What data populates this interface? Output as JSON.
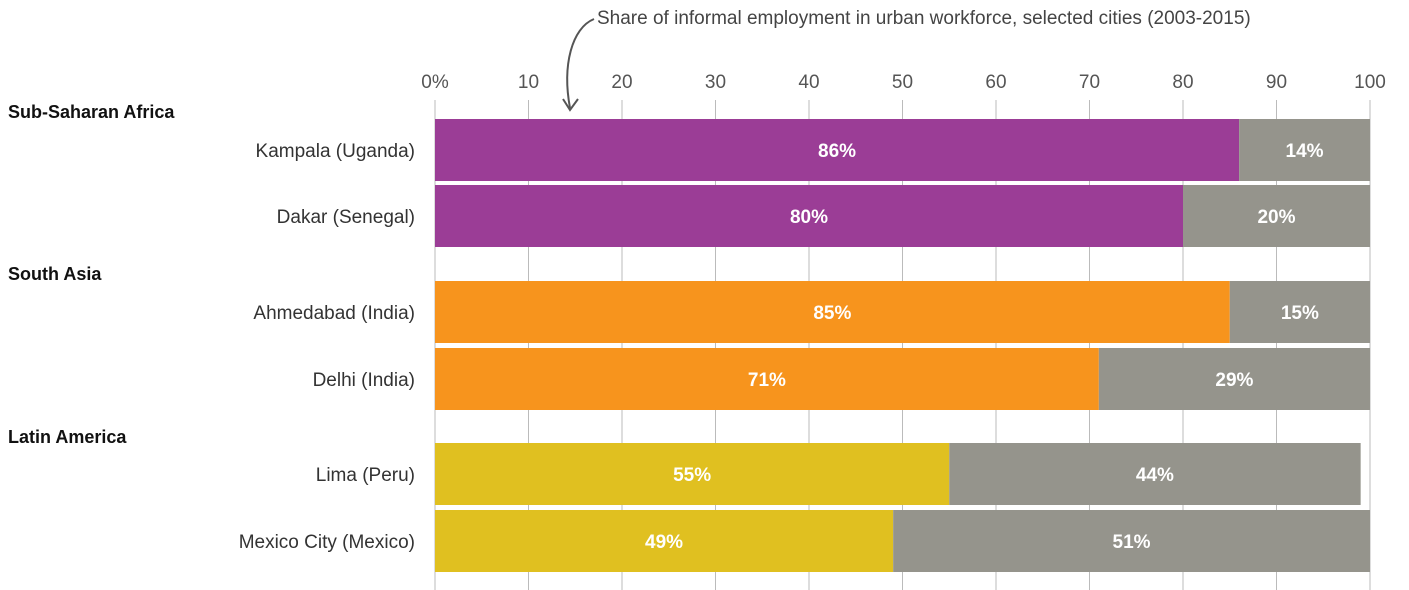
{
  "chart_data": {
    "type": "bar",
    "orientation": "horizontal",
    "stacked": true,
    "title": "Share of informal employment in urban workforce, selected cities (2003-2015)",
    "xlim": [
      0,
      100
    ],
    "x_tick_labels": [
      "0%",
      "10",
      "20",
      "30",
      "40",
      "50",
      "60",
      "70",
      "80",
      "90",
      "100"
    ],
    "grid": true,
    "groups": [
      {
        "name": "Sub-Saharan Africa",
        "color": "#9b3d96",
        "cities": [
          {
            "name": "Kampala (Uganda)",
            "informal": 86,
            "other": 14,
            "informal_label": "86%",
            "other_label": "14%"
          },
          {
            "name": "Dakar (Senegal)",
            "informal": 80,
            "other": 20,
            "informal_label": "80%",
            "other_label": "20%"
          }
        ]
      },
      {
        "name": "South Asia",
        "color": "#f7941d",
        "cities": [
          {
            "name": "Ahmedabad (India)",
            "informal": 85,
            "other": 15,
            "informal_label": "85%",
            "other_label": "15%"
          },
          {
            "name": "Delhi (India)",
            "informal": 71,
            "other": 29,
            "informal_label": "71%",
            "other_label": "29%"
          }
        ]
      },
      {
        "name": "Latin America",
        "color": "#e0c020",
        "cities": [
          {
            "name": "Lima (Peru)",
            "informal": 55,
            "other": 44,
            "informal_label": "55%",
            "other_label": "44%"
          },
          {
            "name": "Mexico City (Mexico)",
            "informal": 49,
            "other": 51,
            "informal_label": "49%",
            "other_label": "51%"
          }
        ]
      }
    ],
    "remainder_color": "#95948c"
  }
}
